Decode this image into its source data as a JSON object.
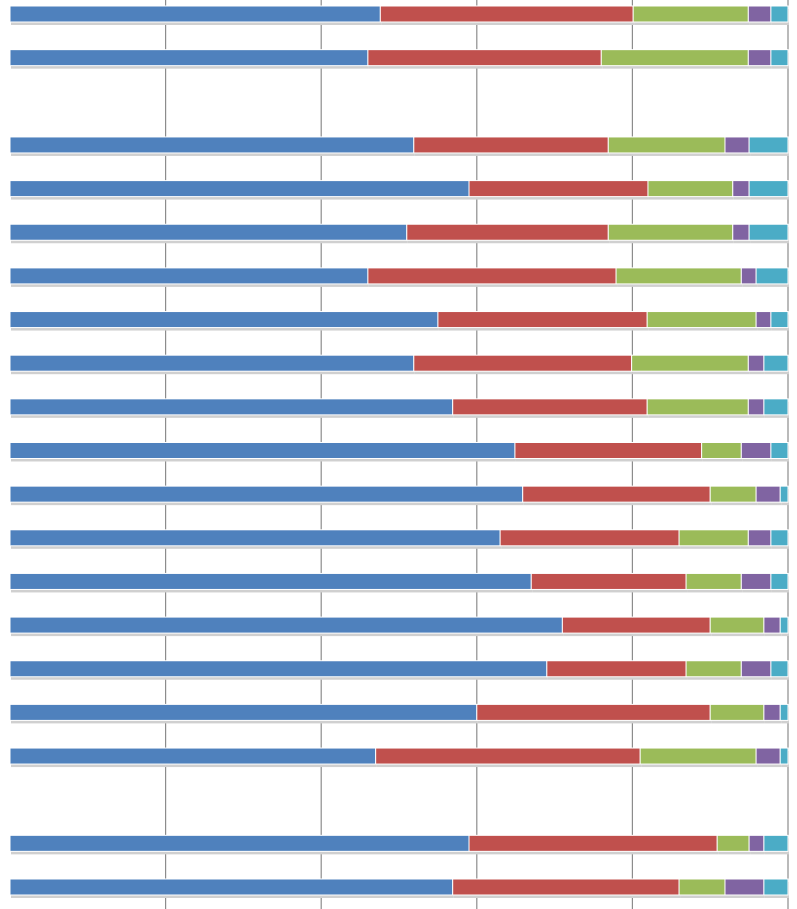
{
  "chart_data": {
    "type": "stacked-bar-horizontal",
    "categories": [
      null,
      null,
      null,
      null,
      null,
      null,
      null,
      null,
      null,
      null,
      null,
      null,
      null,
      null,
      null,
      null,
      null,
      null,
      null,
      null,
      null
    ],
    "series": [
      {
        "color": "#4f81bd",
        "values": [
          47.6,
          46.0,
          null,
          51.9,
          59.0,
          51.0,
          46.0,
          55.0,
          51.9,
          56.9,
          64.9,
          65.9,
          63.0,
          67.0,
          71.0,
          69.0,
          60.0,
          47.0,
          null,
          59.0,
          56.9
        ]
      },
      {
        "color": "#c0504d",
        "values": [
          32.5,
          30.0,
          null,
          25.0,
          23.0,
          25.9,
          31.9,
          26.9,
          28.0,
          25.0,
          24.0,
          24.1,
          23.0,
          19.9,
          19.0,
          17.9,
          30.0,
          34.0,
          null,
          31.9,
          29.1
        ]
      },
      {
        "color": "#9bbb59",
        "values": [
          14.8,
          18.9,
          null,
          15.0,
          10.9,
          16.0,
          16.1,
          14.0,
          15.0,
          13.0,
          5.1,
          5.9,
          8.9,
          7.1,
          6.9,
          7.1,
          6.9,
          14.9,
          null,
          4.1,
          5.9
        ]
      },
      {
        "color": "#8064a2",
        "values": [
          2.9,
          2.9,
          null,
          3.1,
          2.1,
          2.1,
          1.9,
          1.9,
          2.0,
          2.0,
          3.8,
          3.1,
          2.9,
          3.8,
          2.1,
          3.8,
          2.1,
          3.1,
          null,
          1.9,
          5.0
        ]
      },
      {
        "color": "#4bacc6",
        "values": [
          2.2,
          2.2,
          null,
          5.0,
          5.0,
          5.0,
          4.1,
          2.2,
          3.1,
          3.1,
          2.2,
          1.0,
          2.2,
          2.2,
          1.0,
          2.2,
          1.0,
          1.0,
          null,
          3.1,
          3.1
        ]
      }
    ],
    "xlim": [
      0,
      100
    ],
    "xticks": [
      20,
      40,
      60,
      80,
      100
    ],
    "grid": true
  }
}
